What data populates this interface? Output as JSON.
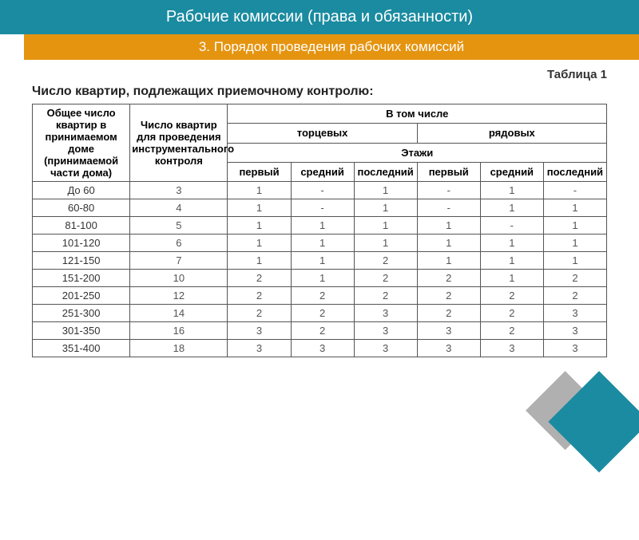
{
  "header": {
    "title": "Рабочие комиссии (права и обязанности)",
    "subtitle": "3. Порядок проведения рабочих комиссий"
  },
  "table_label": "Таблица 1",
  "caption": "Число квартир, подлежащих приемочному контролю:",
  "table": {
    "col1_header": "Общее число квартир в принимаемом доме (принимаемой части дома)",
    "col2_header": "Число квартир для проведения инструментального контроля",
    "group_header": "В том числе",
    "sub_group1": "торцевых",
    "sub_group2": "рядовых",
    "floors_label": "Этажи",
    "floor_cols": [
      "первый",
      "средний",
      "последний",
      "первый",
      "средний",
      "последний"
    ],
    "rows": [
      {
        "r": "До 60",
        "n": "3",
        "c": [
          "1",
          "-",
          "1",
          "-",
          "1",
          "-"
        ]
      },
      {
        "r": "60-80",
        "n": "4",
        "c": [
          "1",
          "-",
          "1",
          "-",
          "1",
          "1"
        ]
      },
      {
        "r": "81-100",
        "n": "5",
        "c": [
          "1",
          "1",
          "1",
          "1",
          "-",
          "1"
        ]
      },
      {
        "r": "101-120",
        "n": "6",
        "c": [
          "1",
          "1",
          "1",
          "1",
          "1",
          "1"
        ]
      },
      {
        "r": "121-150",
        "n": "7",
        "c": [
          "1",
          "1",
          "2",
          "1",
          "1",
          "1"
        ]
      },
      {
        "r": "151-200",
        "n": "10",
        "c": [
          "2",
          "1",
          "2",
          "2",
          "1",
          "2"
        ]
      },
      {
        "r": "201-250",
        "n": "12",
        "c": [
          "2",
          "2",
          "2",
          "2",
          "2",
          "2"
        ]
      },
      {
        "r": "251-300",
        "n": "14",
        "c": [
          "2",
          "2",
          "3",
          "2",
          "2",
          "3"
        ]
      },
      {
        "r": "301-350",
        "n": "16",
        "c": [
          "3",
          "2",
          "3",
          "3",
          "2",
          "3"
        ]
      },
      {
        "r": "351-400",
        "n": "18",
        "c": [
          "3",
          "3",
          "3",
          "3",
          "3",
          "3"
        ]
      }
    ]
  },
  "colors": {
    "header_bg": "#1a8ba0",
    "subheader_bg": "#e59410",
    "border": "#555555",
    "text": "#333333"
  }
}
